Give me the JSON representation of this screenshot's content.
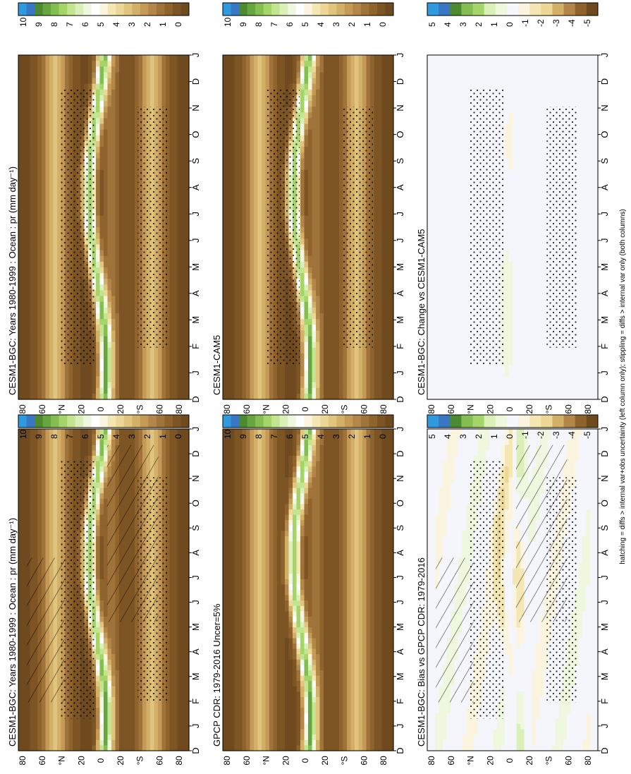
{
  "footnote": "hatching = diffs > internal var+obs uncertainty (left column only); stippling = diffs > internal var only (both columns)",
  "colors": {
    "precip_scale": [
      "#6e4a1e",
      "#7d5524",
      "#8e632c",
      "#a0733a",
      "#b3864a",
      "#c49a56",
      "#d3b068",
      "#e1c57e",
      "#ecd797",
      "#f4e7b4",
      "#fbf5df",
      "#ffffff",
      "#eef8de",
      "#dbf0b9",
      "#c3e590",
      "#a4d46a",
      "#84be52",
      "#66a53f",
      "#4b8a30",
      "#3877c4",
      "#2f9ae0"
    ],
    "diff_scale": [
      "#6e4a1e",
      "#8e632c",
      "#b3864a",
      "#d3b068",
      "#ecd797",
      "#f4e7b4",
      "#fbf5df",
      "#f5f7fc",
      "#eef8de",
      "#dbf0b9",
      "#a4d46a",
      "#84be52",
      "#4b8a30",
      "#3877c4",
      "#2f9ae0"
    ],
    "missing": "#f4f6fc"
  },
  "chart_data": [
    {
      "type": "heatmap",
      "title": "CESM1-BGC: Years 1980-1999 : Ocean : pr (mm day⁻¹)",
      "x": [
        "D",
        "J",
        "F",
        "M",
        "A",
        "M",
        "J",
        "J",
        "A",
        "S",
        "O",
        "N",
        "D",
        "J"
      ],
      "y_ticks": [
        "80",
        "60",
        "°N",
        "20",
        "0",
        "20",
        "°S",
        "60",
        "80"
      ],
      "colorbar": [
        "10",
        "9",
        "8",
        "7",
        "6",
        "5",
        "4",
        "3",
        "2",
        "1",
        "0"
      ],
      "overlay": "hatching+stippling"
    },
    {
      "type": "heatmap",
      "title": "GPCP CDR: 1979-2016 Uncer=5%",
      "x": [
        "D",
        "J",
        "F",
        "M",
        "A",
        "M",
        "J",
        "J",
        "A",
        "S",
        "O",
        "N",
        "D",
        "J"
      ],
      "y_ticks": [
        "80",
        "60",
        "°N",
        "20",
        "0",
        "20",
        "°S",
        "60",
        "80"
      ],
      "colorbar": [
        "10",
        "9",
        "8",
        "7",
        "6",
        "5",
        "4",
        "3",
        "2",
        "1",
        "0"
      ],
      "overlay": "none"
    },
    {
      "type": "heatmap",
      "title": "CESM1-BGC: Bias vs GPCP CDR: 1979-2016",
      "x": [
        "D",
        "J",
        "F",
        "M",
        "A",
        "M",
        "J",
        "J",
        "A",
        "S",
        "O",
        "N",
        "D",
        "J"
      ],
      "y_ticks": [
        "80",
        "60",
        "°N",
        "20",
        "0",
        "20",
        "°S",
        "60",
        "80"
      ],
      "colorbar": [
        "5",
        "4",
        "3",
        "2",
        "1",
        "0",
        "-1",
        "-2",
        "-3",
        "-4",
        "-5"
      ],
      "overlay": "hatching+stippling"
    },
    {
      "type": "heatmap",
      "title": "CESM1-BGC: Years 1980-1999 : Ocean : pr (mm day⁻¹)",
      "x": [
        "D",
        "J",
        "F",
        "M",
        "A",
        "M",
        "J",
        "J",
        "A",
        "S",
        "O",
        "N",
        "D",
        "J"
      ],
      "y_ticks": [
        "80",
        "60",
        "°N",
        "20",
        "0",
        "20",
        "°S",
        "60",
        "80"
      ],
      "colorbar": [
        "10",
        "9",
        "8",
        "7",
        "6",
        "5",
        "4",
        "3",
        "2",
        "1",
        "0"
      ],
      "overlay": "stippling"
    },
    {
      "type": "heatmap",
      "title": "CESM1-CAM5",
      "x": [
        "D",
        "J",
        "F",
        "M",
        "A",
        "M",
        "J",
        "J",
        "A",
        "S",
        "O",
        "N",
        "D",
        "J"
      ],
      "y_ticks": [
        "80",
        "60",
        "°N",
        "20",
        "0",
        "20",
        "°S",
        "60",
        "80"
      ],
      "colorbar": [
        "10",
        "9",
        "8",
        "7",
        "6",
        "5",
        "4",
        "3",
        "2",
        "1",
        "0"
      ],
      "overlay": "stippling"
    },
    {
      "type": "heatmap",
      "title": "CESM1-BGC: Change vs CESM1-CAM5",
      "x": [
        "D",
        "J",
        "F",
        "M",
        "A",
        "M",
        "J",
        "J",
        "A",
        "S",
        "O",
        "N",
        "D",
        "J"
      ],
      "y_ticks": [
        "80",
        "60",
        "°N",
        "20",
        "0",
        "20",
        "°S",
        "60",
        "80"
      ],
      "colorbar": [
        "5",
        "4",
        "3",
        "2",
        "1",
        "0",
        "-1",
        "-2",
        "-3",
        "-4",
        "-5"
      ],
      "overlay": "stippling"
    }
  ]
}
